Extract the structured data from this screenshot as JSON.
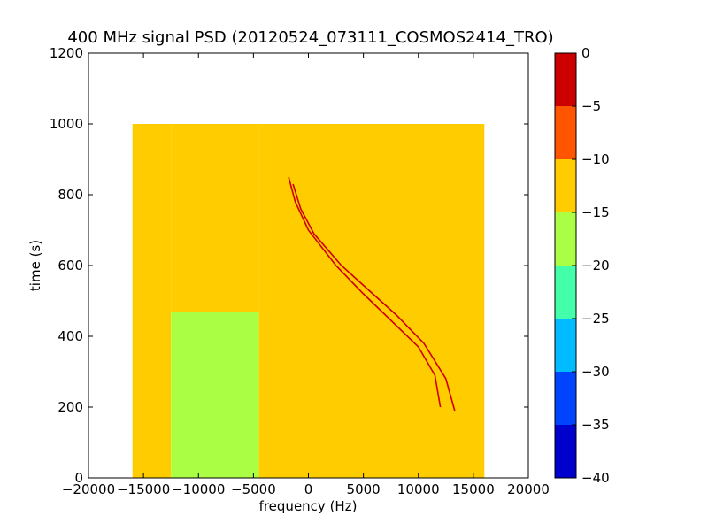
{
  "chart_data": {
    "type": "heatmap",
    "title": "400 MHz signal PSD (20120524_073111_COSMOS2414_TRO)",
    "xlabel": "frequency (Hz)",
    "ylabel": "time (s)",
    "xlim": [
      -20000,
      20000
    ],
    "ylim": [
      0,
      1200
    ],
    "x_ticks": [
      -20000,
      -15000,
      -10000,
      -5000,
      0,
      5000,
      10000,
      15000,
      20000
    ],
    "y_ticks": [
      0,
      200,
      400,
      600,
      800,
      1000,
      1200
    ],
    "data_extent": {
      "x": [
        -16000,
        16000
      ],
      "y": [
        0,
        1000
      ]
    },
    "regions": [
      {
        "x": [
          -16000,
          -12500
        ],
        "y": [
          0,
          1000
        ],
        "level": -12
      },
      {
        "x": [
          -12500,
          -4500
        ],
        "y": [
          0,
          470
        ],
        "level": -16
      },
      {
        "x": [
          -12500,
          -4500
        ],
        "y": [
          470,
          1000
        ],
        "level": -14
      },
      {
        "x": [
          -4500,
          16000
        ],
        "y": [
          0,
          1000
        ],
        "level": -11
      }
    ],
    "traces": [
      {
        "level": -2,
        "points": [
          [
            -1800,
            850
          ],
          [
            -1200,
            780
          ],
          [
            0,
            700
          ],
          [
            2500,
            600
          ],
          [
            5000,
            520
          ],
          [
            7500,
            445
          ],
          [
            10000,
            370
          ],
          [
            11500,
            290
          ],
          [
            12000,
            200
          ]
        ]
      },
      {
        "level": -2,
        "points": [
          [
            -1400,
            830
          ],
          [
            -700,
            760
          ],
          [
            500,
            690
          ],
          [
            3000,
            600
          ],
          [
            5500,
            530
          ],
          [
            8000,
            460
          ],
          [
            10500,
            380
          ],
          [
            12500,
            280
          ],
          [
            13300,
            190
          ]
        ]
      }
    ],
    "colorbar": {
      "vmin": -40,
      "vmax": 0,
      "levels": [
        -40,
        -35,
        -30,
        -25,
        -20,
        -15,
        -10,
        -5,
        0
      ],
      "tick_labels": [
        "0",
        "−5",
        "−10",
        "−15",
        "−20",
        "−25",
        "−30",
        "−35",
        "−40"
      ],
      "colors": [
        "#0000cc",
        "#0044ff",
        "#00bbff",
        "#44ffaa",
        "#aaff44",
        "#ffcc00",
        "#ff5500",
        "#cc0000"
      ]
    },
    "x_tick_labels": [
      "−20000",
      "−15000",
      "−10000",
      "−5000",
      "0",
      "5000",
      "10000",
      "15000",
      "20000"
    ],
    "y_tick_labels": [
      "0",
      "200",
      "400",
      "600",
      "800",
      "1000",
      "1200"
    ]
  }
}
